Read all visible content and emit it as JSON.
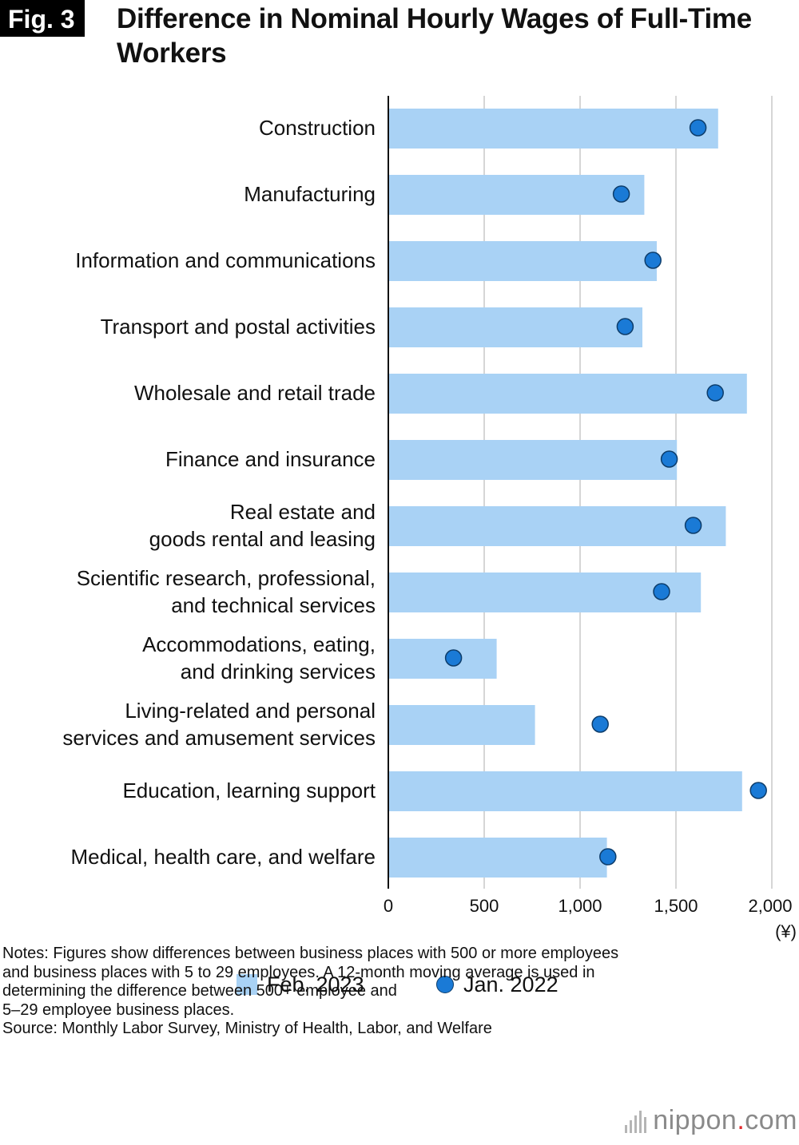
{
  "figure": {
    "badge": "Fig. 3",
    "title": "Difference in Nominal Hourly Wages of Full-Time Workers"
  },
  "chart_data": {
    "type": "bar",
    "orientation": "horizontal",
    "title": "Difference in Nominal Hourly Wages of Full-Time Workers",
    "xlabel": "",
    "ylabel": "",
    "unit_label": "(¥)",
    "xlim": [
      0,
      2000
    ],
    "xticks": [
      0,
      500,
      1000,
      1500,
      2000
    ],
    "xtick_labels": [
      "0",
      "500",
      "1,000",
      "1,500",
      "2,000"
    ],
    "grid": true,
    "categories": [
      [
        "Construction"
      ],
      [
        "Manufacturing"
      ],
      [
        "Information and communications"
      ],
      [
        "Transport and postal activities"
      ],
      [
        "Wholesale and retail trade"
      ],
      [
        "Finance and insurance"
      ],
      [
        "Real estate and",
        "goods rental and leasing"
      ],
      [
        "Scientific research, professional,",
        "and technical services"
      ],
      [
        "Accommodations, eating,",
        "and drinking services"
      ],
      [
        "Living-related and personal",
        "services and amusement services"
      ],
      [
        "Education, learning support"
      ],
      [
        "Medical, health care, and welfare"
      ]
    ],
    "series": [
      {
        "name": "Feb. 2023",
        "type": "bar",
        "color": "#a9d2f5",
        "values": [
          1720,
          1335,
          1400,
          1325,
          1870,
          1505,
          1760,
          1630,
          565,
          765,
          1845,
          1140
        ]
      },
      {
        "name": "Jan. 2022",
        "type": "scatter",
        "color": "#1a7ad6",
        "values": [
          1615,
          1215,
          1380,
          1235,
          1705,
          1465,
          1590,
          1425,
          340,
          1105,
          1930,
          1145
        ]
      }
    ]
  },
  "legend": {
    "bar_label": "Feb. 2023",
    "dot_label": "Jan. 2022"
  },
  "notes": {
    "lines": [
      "Notes: Figures show differences between business places with 500 or more employees",
      "and business places with 5 to 29 employees. A 12-month moving average is used in",
      "determining the difference between 500+ employee and",
      "5–29 employee business places.",
      "Source: Monthly Labor Survey, Ministry of Health, Labor, and Welfare"
    ]
  },
  "logo": {
    "name": "nippon",
    "dot": ".",
    "tld": "com"
  }
}
